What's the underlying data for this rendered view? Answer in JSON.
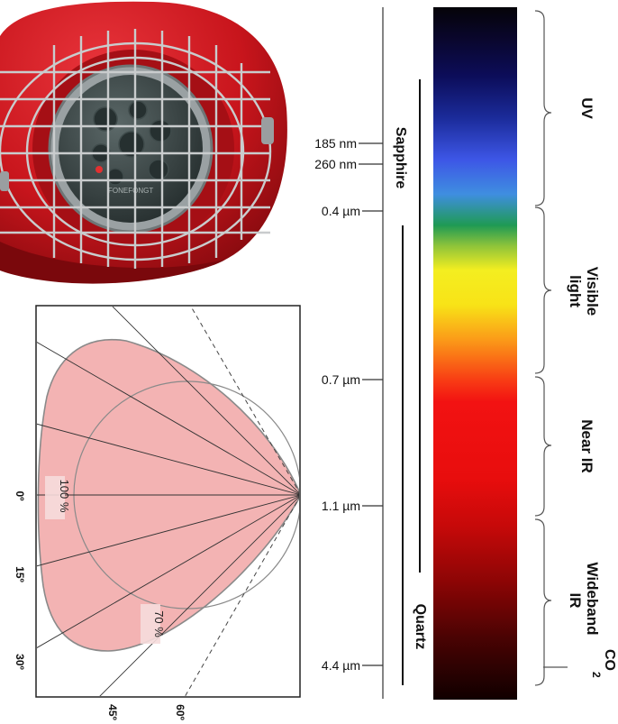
{
  "colors": {
    "detector_body": "#c8151c",
    "detector_dark": "#8e0b10",
    "lens": "#2f3a3a",
    "cage": "#bfc2c4",
    "cone_fill": "#f3b3b3",
    "cone_stroke": "#8a8a8a",
    "frame": "#222222"
  },
  "detector": {
    "lens_text": "FONEFONGT"
  },
  "wavelength_markers": [
    {
      "label": "185 nm",
      "nm": 185
    },
    {
      "label": "260 nm",
      "nm": 260
    },
    {
      "label": "0.4 µm",
      "nm": 400
    },
    {
      "label": "0.7 µm",
      "nm": 700
    },
    {
      "label": "1.1 µm",
      "nm": 1100
    },
    {
      "label": "4.4 µm",
      "nm": 4400
    }
  ],
  "materials": [
    {
      "label": "Sapphire"
    },
    {
      "label": "Quartz"
    }
  ],
  "bands": [
    {
      "label": "UV"
    },
    {
      "label": "Visible",
      "label2": "light"
    },
    {
      "label": "Near IR"
    },
    {
      "label": "Wideband",
      "label2": "IR"
    },
    {
      "label": "CO",
      "sub": "2"
    }
  ],
  "field_of_view": {
    "angle_labels": [
      "0º",
      "15º",
      "30º",
      "45º",
      "60º"
    ],
    "sensitivity_labels": [
      "100 %",
      "70 %"
    ]
  }
}
